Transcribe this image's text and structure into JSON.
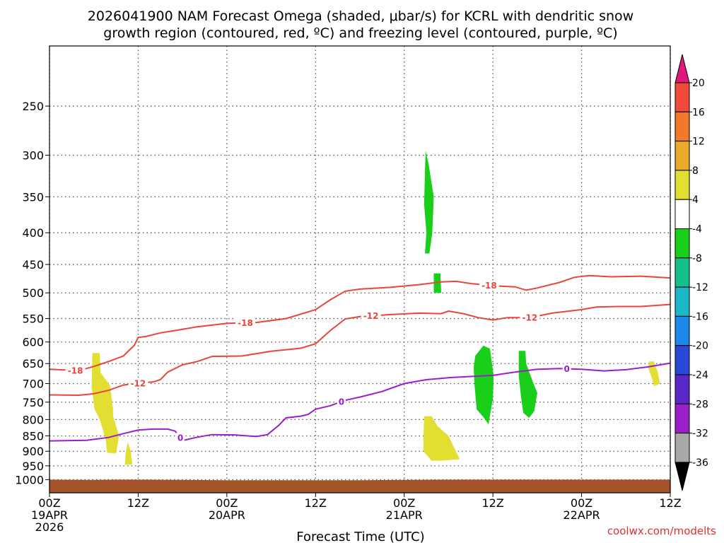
{
  "chart_data": {
    "type": "time-height",
    "title_line1": "2026041900 NAM Forecast Omega (shaded, μbar/s) for KCRL with dendritic snow",
    "title_line2": "growth region (contoured, red, ºC) and freezing level (contoured, purple, ºC)",
    "xlabel": "Forecast Time (UTC)",
    "credit": "coolwx.com/modelts",
    "y_axis": {
      "scale": "pressure-log",
      "range_hpa": [
        1050,
        200
      ],
      "ticks": [
        "250",
        "300",
        "350",
        "400",
        "450",
        "500",
        "550",
        "600",
        "650",
        "700",
        "750",
        "800",
        "850",
        "900",
        "950",
        "1000"
      ]
    },
    "x_axis": {
      "range_hours": [
        0,
        84
      ],
      "ticks": [
        {
          "h": 0,
          "line1": "00Z",
          "line2": "19APR",
          "line3": "2026"
        },
        {
          "h": 12,
          "line1": "12Z",
          "line2": "",
          "line3": ""
        },
        {
          "h": 24,
          "line1": "00Z",
          "line2": "20APR",
          "line3": ""
        },
        {
          "h": 36,
          "line1": "12Z",
          "line2": "",
          "line3": ""
        },
        {
          "h": 48,
          "line1": "00Z",
          "line2": "21APR",
          "line3": ""
        },
        {
          "h": 60,
          "line1": "12Z",
          "line2": "",
          "line3": ""
        },
        {
          "h": 72,
          "line1": "00Z",
          "line2": "22APR",
          "line3": ""
        },
        {
          "h": 84,
          "line1": "12Z",
          "line2": "",
          "line3": ""
        }
      ]
    },
    "surface_pressure_hpa": [
      [
        0,
        1000
      ],
      [
        6,
        1001
      ],
      [
        9,
        1000
      ],
      [
        12,
        1000
      ],
      [
        18,
        1001
      ],
      [
        24,
        1002
      ],
      [
        30,
        1002
      ],
      [
        36,
        1002
      ],
      [
        42,
        1002
      ],
      [
        48,
        1001
      ],
      [
        54,
        1000
      ],
      [
        60,
        1000
      ],
      [
        66,
        1000
      ],
      [
        72,
        1000
      ],
      [
        78,
        1000
      ],
      [
        84,
        1000
      ]
    ],
    "contours": [
      {
        "color": "#e8463c",
        "label": "-18",
        "label_at_hours": [
          3.5,
          26.5,
          59.5
        ],
        "points": [
          [
            0,
            664
          ],
          [
            4,
            667
          ],
          [
            6,
            657
          ],
          [
            8,
            645
          ],
          [
            10,
            632
          ],
          [
            11.5,
            607
          ],
          [
            12,
            590
          ],
          [
            13,
            588
          ],
          [
            15,
            580
          ],
          [
            17,
            575
          ],
          [
            20,
            567
          ],
          [
            24,
            560
          ],
          [
            28,
            558
          ],
          [
            32,
            550
          ],
          [
            36,
            532
          ],
          [
            38,
            513
          ],
          [
            40,
            497
          ],
          [
            42,
            493
          ],
          [
            46,
            490
          ],
          [
            50,
            485
          ],
          [
            53,
            480
          ],
          [
            55,
            479
          ],
          [
            57,
            483
          ],
          [
            60,
            487
          ],
          [
            63,
            489
          ],
          [
            64.5,
            495
          ],
          [
            66,
            491
          ],
          [
            69,
            481
          ],
          [
            71,
            472
          ],
          [
            73,
            469
          ],
          [
            76,
            471
          ],
          [
            80,
            470
          ],
          [
            84,
            473
          ]
        ]
      },
      {
        "color": "#e8463c",
        "label": "-12",
        "label_at_hours": [
          12,
          43.5,
          65
        ],
        "points": [
          [
            0,
            730
          ],
          [
            4,
            731
          ],
          [
            6,
            727
          ],
          [
            8,
            718
          ],
          [
            10,
            704
          ],
          [
            12,
            699
          ],
          [
            14,
            696
          ],
          [
            15,
            690
          ],
          [
            16,
            671
          ],
          [
            18,
            653
          ],
          [
            20,
            645
          ],
          [
            22,
            633
          ],
          [
            26,
            632
          ],
          [
            30,
            621
          ],
          [
            34,
            614
          ],
          [
            36,
            604
          ],
          [
            38,
            575
          ],
          [
            40,
            551
          ],
          [
            42,
            546
          ],
          [
            46,
            542
          ],
          [
            50,
            539
          ],
          [
            53,
            540
          ],
          [
            54,
            535
          ],
          [
            56,
            540
          ],
          [
            58,
            548
          ],
          [
            60,
            553
          ],
          [
            62,
            548
          ],
          [
            65,
            548
          ],
          [
            68,
            539
          ],
          [
            72,
            532
          ],
          [
            74,
            527
          ],
          [
            77,
            526
          ],
          [
            80,
            526
          ],
          [
            84,
            522
          ]
        ]
      },
      {
        "color": "#9a1fc8",
        "label": "0",
        "label_at_hours": [
          17.7,
          39.5,
          70
        ],
        "points": [
          [
            0,
            866
          ],
          [
            5,
            864
          ],
          [
            8,
            855
          ],
          [
            10,
            843
          ],
          [
            12,
            832
          ],
          [
            14,
            829
          ],
          [
            16,
            829
          ],
          [
            17,
            835
          ],
          [
            17.5,
            850
          ],
          [
            18,
            865
          ],
          [
            20,
            854
          ],
          [
            22,
            846
          ],
          [
            25,
            847
          ],
          [
            28,
            852
          ],
          [
            29.5,
            846
          ],
          [
            31,
            818
          ],
          [
            32,
            795
          ],
          [
            34,
            790
          ],
          [
            35,
            785
          ],
          [
            36,
            770
          ],
          [
            38,
            760
          ],
          [
            40,
            745
          ],
          [
            42,
            736
          ],
          [
            45,
            721
          ],
          [
            48,
            700
          ],
          [
            51,
            690
          ],
          [
            54,
            685
          ],
          [
            57,
            682
          ],
          [
            60,
            679
          ],
          [
            63,
            671
          ],
          [
            66,
            664
          ],
          [
            69,
            662
          ],
          [
            72,
            664
          ],
          [
            75,
            668
          ],
          [
            78,
            665
          ],
          [
            81,
            658
          ],
          [
            84,
            649
          ]
        ]
      }
    ],
    "shaded_regions": [
      {
        "color": "#e3de32",
        "value_band": "4 to 8",
        "points": [
          [
            5.8,
            625
          ],
          [
            6.8,
            625
          ],
          [
            6.9,
            672
          ],
          [
            8.2,
            705
          ],
          [
            8.6,
            770
          ],
          [
            8.6,
            790
          ],
          [
            9.4,
            850
          ],
          [
            9.0,
            907
          ],
          [
            7.8,
            905
          ],
          [
            7.6,
            860
          ],
          [
            6.8,
            800
          ],
          [
            6.1,
            770
          ],
          [
            5.7,
            710
          ]
        ]
      },
      {
        "color": "#e3de32",
        "value_band": "4 to 8",
        "points": [
          [
            10.6,
            870
          ],
          [
            11.0,
            900
          ],
          [
            11.2,
            945
          ],
          [
            10.2,
            947
          ],
          [
            10.3,
            905
          ]
        ]
      },
      {
        "color": "#e3de32",
        "value_band": "4 to 8",
        "points": [
          [
            50.7,
            790
          ],
          [
            51.7,
            790
          ],
          [
            52.5,
            820
          ],
          [
            54.0,
            850
          ],
          [
            54.6,
            880
          ],
          [
            55.0,
            900
          ],
          [
            55.5,
            927
          ],
          [
            53.0,
            932
          ],
          [
            51.7,
            932
          ],
          [
            50.6,
            900
          ],
          [
            50.6,
            850
          ]
        ]
      },
      {
        "color": "#e3de32",
        "value_band": "4 to 8",
        "points": [
          [
            81.2,
            645
          ],
          [
            81.8,
            645
          ],
          [
            82.3,
            670
          ],
          [
            82.6,
            700
          ],
          [
            81.8,
            707
          ],
          [
            81.5,
            685
          ],
          [
            81.0,
            660
          ]
        ]
      },
      {
        "color": "#19cf19",
        "value_band": "-8 to -4",
        "points": [
          [
            50.9,
            295
          ],
          [
            51.3,
            310
          ],
          [
            52.0,
            350
          ],
          [
            51.8,
            400
          ],
          [
            51.4,
            432
          ],
          [
            50.8,
            432
          ],
          [
            51.0,
            400
          ],
          [
            50.7,
            360
          ],
          [
            50.8,
            320
          ]
        ]
      },
      {
        "color": "#19cf19",
        "value_band": "-8 to -4",
        "points": [
          [
            52.0,
            465
          ],
          [
            52.9,
            465
          ],
          [
            53.0,
            500
          ],
          [
            52.0,
            500
          ]
        ]
      },
      {
        "color": "#19cf19",
        "value_band": "-8 to -4",
        "points": [
          [
            57.6,
            632
          ],
          [
            58.7,
            608
          ],
          [
            59.6,
            615
          ],
          [
            60.1,
            680
          ],
          [
            60.0,
            740
          ],
          [
            59.4,
            815
          ],
          [
            58.8,
            795
          ],
          [
            57.8,
            770
          ],
          [
            57.5,
            700
          ],
          [
            57.4,
            660
          ]
        ]
      },
      {
        "color": "#19cf19",
        "value_band": "-8 to -4",
        "points": [
          [
            63.5,
            620
          ],
          [
            64.4,
            620
          ],
          [
            64.5,
            650
          ],
          [
            65.3,
            690
          ],
          [
            66.0,
            725
          ],
          [
            65.6,
            775
          ],
          [
            64.9,
            795
          ],
          [
            64.1,
            780
          ],
          [
            63.8,
            735
          ],
          [
            63.5,
            680
          ]
        ]
      }
    ],
    "colorbar": {
      "labels": [
        "20",
        "16",
        "12",
        "8",
        "4",
        "-4",
        "-8",
        "-12",
        "-16",
        "-20",
        "-24",
        "-28",
        "-32",
        "-36"
      ],
      "colors": [
        "#e8184e",
        "#f04a3a",
        "#f07a2a",
        "#e8aa2a",
        "#e3de32",
        "#ffffff",
        "#19cf19",
        "#16c08a",
        "#1ab8c8",
        "#1e88e8",
        "#2a48d8",
        "#5a28c8",
        "#9a1fc8",
        "#a8a8a8"
      ],
      "top_triangle_color": "#e0187a",
      "bottom_triangle_color": "#000000"
    },
    "ground_color": "#a25428"
  }
}
